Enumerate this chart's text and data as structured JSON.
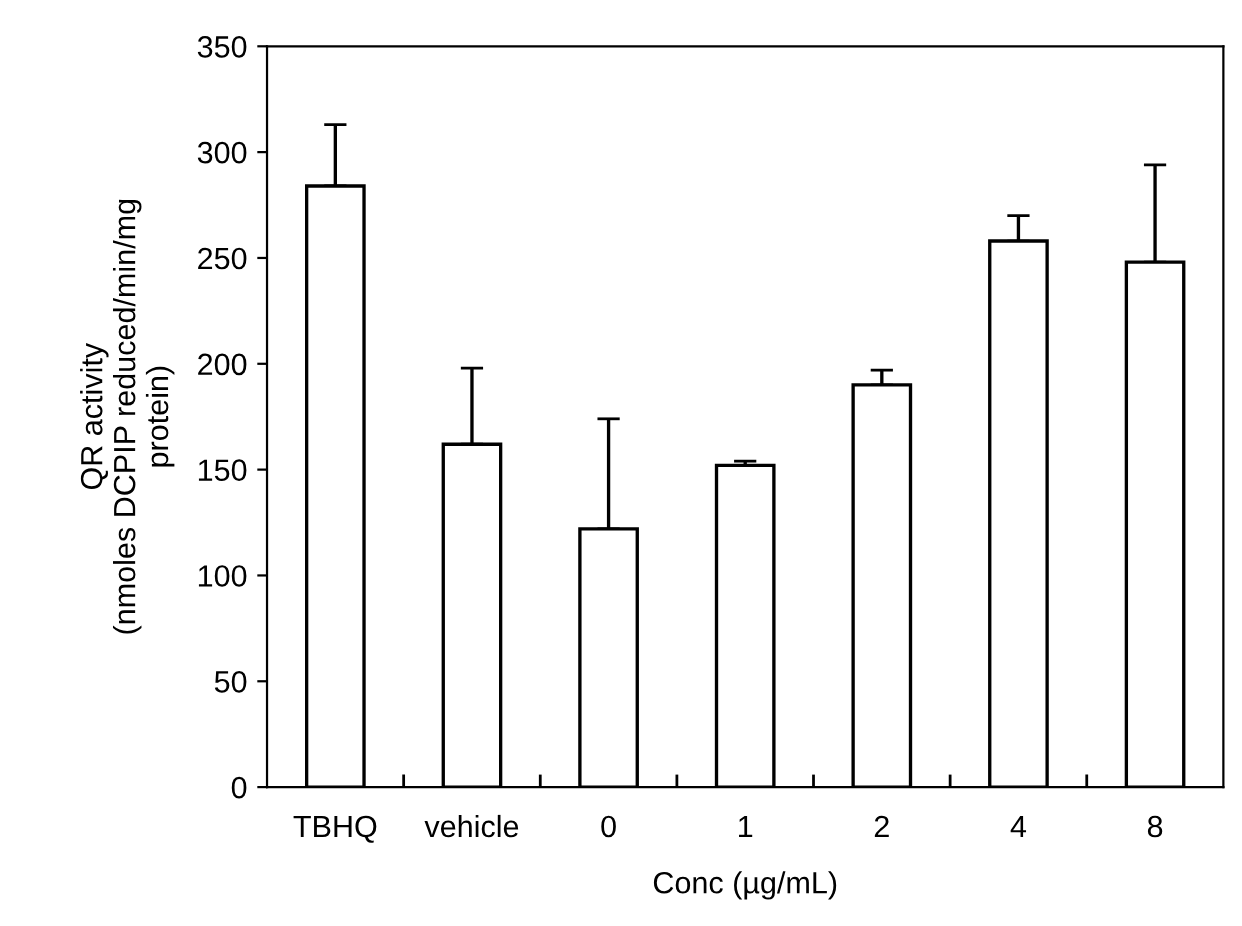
{
  "chart_data": {
    "type": "bar",
    "xlabel": "Conc (µg/mL)",
    "ylabel": "QR activity\n(nmoles DCPIP reduced/min/mg\nprotein)",
    "categories": [
      "TBHQ",
      "vehicle",
      "0",
      "1",
      "2",
      "4",
      "8"
    ],
    "values": [
      284,
      162,
      122,
      152,
      190,
      258,
      248
    ],
    "errors": [
      [
        284,
        313
      ],
      [
        162,
        198
      ],
      [
        122,
        174
      ],
      [
        152,
        154
      ],
      [
        190,
        197
      ],
      [
        258,
        270
      ],
      [
        248,
        294
      ]
    ],
    "color": "#ffffff",
    "ylim": [
      0,
      350
    ],
    "yticks": [
      0,
      50,
      100,
      150,
      200,
      250,
      300,
      350
    ],
    "grid": false,
    "legend": false
  }
}
